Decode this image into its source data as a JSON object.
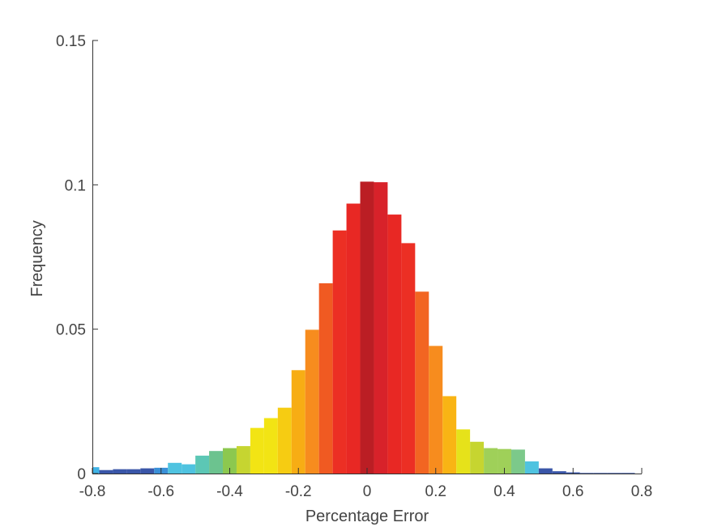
{
  "chart_data": {
    "type": "bar",
    "xlabel": "Percentage Error",
    "ylabel": "Frequency",
    "xlim": [
      -0.8,
      0.8
    ],
    "ylim": [
      0,
      0.15
    ],
    "xticks": [
      -0.8,
      -0.6,
      -0.4,
      -0.2,
      0,
      0.2,
      0.4,
      0.6,
      0.8
    ],
    "xtick_labels": [
      "-0.8",
      "-0.6",
      "-0.4",
      "-0.2",
      "0",
      "0.2",
      "0.4",
      "0.6",
      "0.8"
    ],
    "yticks": [
      0,
      0.05,
      0.1,
      0.15
    ],
    "ytick_labels": [
      "0",
      "0.05",
      "0.1",
      "0.15"
    ],
    "bin_width": 0.04,
    "bin_centers": [
      -0.8,
      -0.76,
      -0.72,
      -0.68,
      -0.64,
      -0.6,
      -0.56,
      -0.52,
      -0.48,
      -0.44,
      -0.4,
      -0.36,
      -0.32,
      -0.28,
      -0.24,
      -0.2,
      -0.16,
      -0.12,
      -0.08,
      -0.04,
      0.0,
      0.04,
      0.08,
      0.12,
      0.16,
      0.2,
      0.24,
      0.28,
      0.32,
      0.36,
      0.4,
      0.44,
      0.48,
      0.52,
      0.56,
      0.6,
      0.64,
      0.68,
      0.72,
      0.76
    ],
    "values": [
      0.0022,
      0.0012,
      0.0015,
      0.0015,
      0.0018,
      0.002,
      0.0037,
      0.0032,
      0.0062,
      0.0078,
      0.0088,
      0.0095,
      0.0158,
      0.0192,
      0.0228,
      0.0358,
      0.0498,
      0.0659,
      0.0842,
      0.0935,
      0.1011,
      0.1009,
      0.0897,
      0.0798,
      0.063,
      0.0442,
      0.0268,
      0.0153,
      0.011,
      0.0088,
      0.0085,
      0.0083,
      0.0042,
      0.0018,
      0.0008,
      0.0004,
      0.0002,
      0.0002,
      0.0002,
      0.0002
    ],
    "colors": [
      "#3fb3e6",
      "#3a56a8",
      "#3a56a8",
      "#3a56a8",
      "#3a56a8",
      "#3a90d8",
      "#4fc3e0",
      "#4fc3e0",
      "#5cc7b5",
      "#6cc38f",
      "#8cc84f",
      "#c6d530",
      "#f2e414",
      "#f2e414",
      "#f6cc12",
      "#f7ad14",
      "#f78c1e",
      "#f05a22",
      "#ec2f24",
      "#e82824",
      "#bb1e24",
      "#d8222a",
      "#e82824",
      "#ec2f24",
      "#f26522",
      "#f78c1e",
      "#f9b414",
      "#e6e21a",
      "#c6d530",
      "#9fd059",
      "#9fd059",
      "#7cc98a",
      "#4fc3e0",
      "#3a56a8",
      "#3a56a8",
      "#3a56a8",
      "#3a56a8",
      "#3a56a8",
      "#3a56a8",
      "#3a56a8"
    ]
  }
}
